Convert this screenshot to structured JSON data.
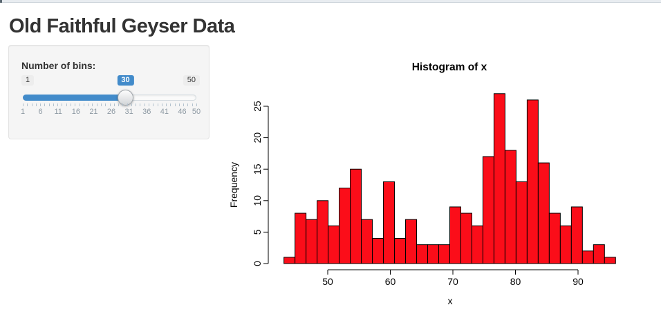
{
  "page": {
    "heading": "Old Faithful Geyser Data"
  },
  "sidebar": {
    "bins_label": "Number of bins:",
    "slider": {
      "min": 1,
      "max": 50,
      "value": 30,
      "min_label": "1",
      "max_label": "50",
      "value_label": "30",
      "grid_labels": [
        "1",
        "6",
        "11",
        "16",
        "21",
        "26",
        "31",
        "36",
        "41",
        "46",
        "50"
      ],
      "accent_color": "#428bca"
    }
  },
  "chart_data": {
    "type": "bar",
    "title": "Histogram of x",
    "xlabel": "x",
    "ylabel": "Frequency",
    "bin_start": 43,
    "bin_end": 96,
    "bin_count": 30,
    "values": [
      1,
      8,
      7,
      10,
      6,
      12,
      15,
      7,
      4,
      13,
      4,
      7,
      3,
      3,
      3,
      9,
      8,
      6,
      17,
      27,
      18,
      13,
      26,
      16,
      8,
      6,
      9,
      2,
      3,
      1
    ],
    "x_ticks": [
      50,
      60,
      70,
      80,
      90
    ],
    "y_ticks": [
      0,
      5,
      10,
      15,
      20,
      25
    ],
    "xlim": [
      43,
      96
    ],
    "ylim": [
      0,
      25
    ],
    "grid": false,
    "legend": null,
    "bar_fill": "#fb0d19",
    "bar_border": "#000000"
  }
}
